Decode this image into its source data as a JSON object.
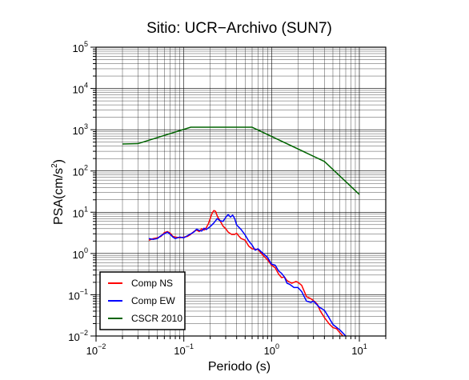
{
  "chart_data": {
    "type": "line",
    "title": "Sitio: UCR−Archivo (SUN7)",
    "xlabel": "Periodo (s)",
    "ylabel_main": "PSA(cm/s",
    "ylabel_sup": "2",
    "ylabel_end": ")",
    "xscale": "log",
    "yscale": "log",
    "xlim": [
      0.01,
      20
    ],
    "ylim": [
      0.01,
      100000
    ],
    "grid": true,
    "legend_position": "bottom-left",
    "x_ticks": [
      {
        "base": "10",
        "exp": "−2",
        "value": 0.01
      },
      {
        "base": "10",
        "exp": "−1",
        "value": 0.1
      },
      {
        "base": "10",
        "exp": "0",
        "value": 1
      },
      {
        "base": "10",
        "exp": "1",
        "value": 10
      }
    ],
    "y_ticks": [
      {
        "base": "10",
        "exp": "−2",
        "value": 0.01
      },
      {
        "base": "10",
        "exp": "−1",
        "value": 0.1
      },
      {
        "base": "10",
        "exp": "0",
        "value": 1
      },
      {
        "base": "10",
        "exp": "1",
        "value": 10
      },
      {
        "base": "10",
        "exp": "2",
        "value": 100
      },
      {
        "base": "10",
        "exp": "3",
        "value": 1000
      },
      {
        "base": "10",
        "exp": "4",
        "value": 10000
      },
      {
        "base": "10",
        "exp": "5",
        "value": 100000
      }
    ],
    "series": [
      {
        "name": "Comp NS",
        "color": "#ff0000",
        "points": [
          [
            0.04,
            2.1
          ],
          [
            0.045,
            2.3
          ],
          [
            0.05,
            2.4
          ],
          [
            0.055,
            2.6
          ],
          [
            0.06,
            3.2
          ],
          [
            0.065,
            3.4
          ],
          [
            0.07,
            3.1
          ],
          [
            0.075,
            2.6
          ],
          [
            0.08,
            2.5
          ],
          [
            0.09,
            2.4
          ],
          [
            0.1,
            2.5
          ],
          [
            0.11,
            2.6
          ],
          [
            0.12,
            2.9
          ],
          [
            0.13,
            3.4
          ],
          [
            0.14,
            3.7
          ],
          [
            0.15,
            3.4
          ],
          [
            0.16,
            4.0
          ],
          [
            0.17,
            3.7
          ],
          [
            0.18,
            4.2
          ],
          [
            0.19,
            5.2
          ],
          [
            0.2,
            7.0
          ],
          [
            0.21,
            9.5
          ],
          [
            0.22,
            11.0
          ],
          [
            0.23,
            10.5
          ],
          [
            0.24,
            8.2
          ],
          [
            0.25,
            7.0
          ],
          [
            0.27,
            5.3
          ],
          [
            0.28,
            4.6
          ],
          [
            0.3,
            4.0
          ],
          [
            0.32,
            3.3
          ],
          [
            0.35,
            2.9
          ],
          [
            0.38,
            2.9
          ],
          [
            0.4,
            3.1
          ],
          [
            0.42,
            2.7
          ],
          [
            0.45,
            2.3
          ],
          [
            0.5,
            2.1
          ],
          [
            0.55,
            1.5
          ],
          [
            0.6,
            1.3
          ],
          [
            0.7,
            1.25
          ],
          [
            0.8,
            0.9
          ],
          [
            0.9,
            0.7
          ],
          [
            1.0,
            0.52
          ],
          [
            1.1,
            0.45
          ],
          [
            1.2,
            0.32
          ],
          [
            1.3,
            0.26
          ],
          [
            1.4,
            0.27
          ],
          [
            1.5,
            0.22
          ],
          [
            1.7,
            0.19
          ],
          [
            1.9,
            0.21
          ],
          [
            2.0,
            0.2
          ],
          [
            2.2,
            0.17
          ],
          [
            2.5,
            0.09
          ],
          [
            2.8,
            0.08
          ],
          [
            3.0,
            0.072
          ],
          [
            3.3,
            0.06
          ],
          [
            3.6,
            0.04
          ],
          [
            4.0,
            0.028
          ],
          [
            4.5,
            0.02
          ],
          [
            5.0,
            0.016
          ],
          [
            5.5,
            0.015
          ],
          [
            6.0,
            0.012
          ],
          [
            6.5,
            0.01
          ]
        ]
      },
      {
        "name": "Comp EW",
        "color": "#0000ff",
        "points": [
          [
            0.04,
            2.3
          ],
          [
            0.045,
            2.2
          ],
          [
            0.05,
            2.3
          ],
          [
            0.055,
            2.7
          ],
          [
            0.06,
            3.0
          ],
          [
            0.065,
            3.3
          ],
          [
            0.07,
            2.9
          ],
          [
            0.075,
            2.5
          ],
          [
            0.08,
            2.3
          ],
          [
            0.09,
            2.5
          ],
          [
            0.1,
            2.4
          ],
          [
            0.11,
            2.7
          ],
          [
            0.12,
            3.0
          ],
          [
            0.13,
            3.3
          ],
          [
            0.14,
            3.9
          ],
          [
            0.15,
            3.6
          ],
          [
            0.16,
            3.5
          ],
          [
            0.17,
            4.1
          ],
          [
            0.18,
            3.8
          ],
          [
            0.2,
            4.5
          ],
          [
            0.22,
            5.5
          ],
          [
            0.24,
            7.0
          ],
          [
            0.26,
            6.2
          ],
          [
            0.28,
            6.0
          ],
          [
            0.3,
            7.5
          ],
          [
            0.32,
            8.8
          ],
          [
            0.34,
            7.6
          ],
          [
            0.36,
            8.5
          ],
          [
            0.38,
            7.0
          ],
          [
            0.4,
            4.9
          ],
          [
            0.45,
            3.8
          ],
          [
            0.5,
            2.8
          ],
          [
            0.55,
            2.0
          ],
          [
            0.6,
            1.6
          ],
          [
            0.65,
            1.2
          ],
          [
            0.7,
            1.3
          ],
          [
            0.8,
            1.0
          ],
          [
            0.9,
            0.8
          ],
          [
            1.0,
            0.55
          ],
          [
            1.1,
            0.52
          ],
          [
            1.2,
            0.38
          ],
          [
            1.3,
            0.33
          ],
          [
            1.4,
            0.27
          ],
          [
            1.5,
            0.19
          ],
          [
            1.6,
            0.18
          ],
          [
            1.8,
            0.15
          ],
          [
            2.0,
            0.15
          ],
          [
            2.2,
            0.12
          ],
          [
            2.5,
            0.07
          ],
          [
            2.8,
            0.065
          ],
          [
            3.0,
            0.07
          ],
          [
            3.5,
            0.05
          ],
          [
            4.0,
            0.042
          ],
          [
            4.5,
            0.028
          ],
          [
            5.0,
            0.019
          ],
          [
            6.0,
            0.014
          ],
          [
            7.0,
            0.01
          ]
        ]
      },
      {
        "name": "CSCR 2010",
        "color": "#006400",
        "points": [
          [
            0.02,
            450
          ],
          [
            0.03,
            460
          ],
          [
            0.12,
            1150
          ],
          [
            0.6,
            1150
          ],
          [
            4.0,
            170
          ],
          [
            10.0,
            27
          ]
        ]
      }
    ]
  }
}
